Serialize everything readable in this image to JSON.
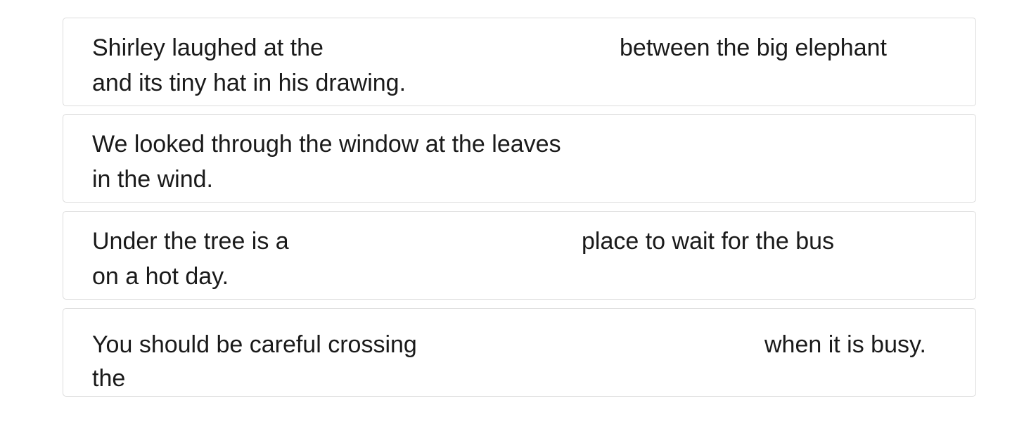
{
  "items": [
    {
      "before": "Shirley laughed at the",
      "after": "between the big elephant",
      "line2": "and its tiny hat in his drawing."
    },
    {
      "before": "We looked through the window at the leaves",
      "after": "",
      "line2": "in the wind."
    },
    {
      "before": "Under the tree is a",
      "after": "place to wait for the bus",
      "line2": "on a hot day."
    },
    {
      "before": "You should be careful crossing",
      "after": "when it is busy.",
      "line2": "the"
    }
  ]
}
